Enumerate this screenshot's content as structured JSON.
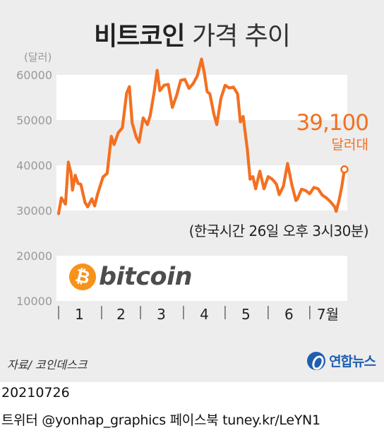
{
  "header": {
    "title_bold": "비트코인",
    "title_light": "가격 추이"
  },
  "annotation": {
    "latest_value": "39,100",
    "latest_unit": "달러대"
  },
  "time_note": "(한국시간 26일 오후 3시30분)",
  "logo": {
    "symbol": "₿",
    "word": "bitcoin",
    "icon": "bitcoin-logo-icon",
    "color": "#f7931a"
  },
  "footer": {
    "source": "자료/ 코인데스크",
    "agency": "연합뉴스",
    "date": "20210726",
    "credit": "트위터 @yonhap_graphics  페이스북 tuney.kr/LeYN1"
  },
  "colors": {
    "line": "#f37021",
    "band": "#ffffff",
    "background": "#ededed",
    "axis_text": "#999999"
  },
  "chart_data": {
    "type": "line",
    "title": "비트코인 가격 추이",
    "ylabel": "(달러)",
    "ylim": [
      10000,
      60000
    ],
    "ytick_values": [
      10000,
      20000,
      30000,
      40000,
      50000,
      60000
    ],
    "ytick_labels": [
      "10000",
      "20000",
      "30000",
      "40000",
      "50000",
      "60000"
    ],
    "month_labels": [
      "1",
      "2",
      "3",
      "4",
      "5",
      "6",
      "7월"
    ],
    "grid": "alternating white bands",
    "series": [
      {
        "x": [
          "2021-01-01",
          "2021-01-03",
          "2021-01-06",
          "2021-01-08",
          "2021-01-10",
          "2021-01-11",
          "2021-01-13",
          "2021-01-15",
          "2021-01-17",
          "2021-01-20",
          "2021-01-22",
          "2021-01-25",
          "2021-01-27",
          "2021-01-29",
          "2021-02-02",
          "2021-02-05",
          "2021-02-08",
          "2021-02-10",
          "2021-02-13",
          "2021-02-16",
          "2021-02-19",
          "2021-02-21",
          "2021-02-23",
          "2021-02-26",
          "2021-02-28",
          "2021-03-03",
          "2021-03-06",
          "2021-03-08",
          "2021-03-11",
          "2021-03-13",
          "2021-03-15",
          "2021-03-18",
          "2021-03-21",
          "2021-03-24",
          "2021-03-27",
          "2021-03-30",
          "2021-04-02",
          "2021-04-05",
          "2021-04-08",
          "2021-04-11",
          "2021-04-14",
          "2021-04-16",
          "2021-04-18",
          "2021-04-20",
          "2021-04-23",
          "2021-04-25",
          "2021-04-28",
          "2021-05-01",
          "2021-05-04",
          "2021-05-07",
          "2021-05-10",
          "2021-05-12",
          "2021-05-14",
          "2021-05-17",
          "2021-05-19",
          "2021-05-21",
          "2021-05-23",
          "2021-05-26",
          "2021-05-29",
          "2021-06-01",
          "2021-06-04",
          "2021-06-07",
          "2021-06-09",
          "2021-06-12",
          "2021-06-15",
          "2021-06-18",
          "2021-06-21",
          "2021-06-22",
          "2021-06-25",
          "2021-06-28",
          "2021-07-01",
          "2021-07-04",
          "2021-07-07",
          "2021-07-10",
          "2021-07-13",
          "2021-07-16",
          "2021-07-19",
          "2021-07-20",
          "2021-07-22",
          "2021-07-24",
          "2021-07-26"
        ],
        "y": [
          29300,
          32800,
          31400,
          40700,
          38200,
          34500,
          37800,
          36000,
          35800,
          31800,
          30800,
          32600,
          31000,
          33500,
          37400,
          38200,
          46400,
          44600,
          47200,
          48300,
          55900,
          57400,
          49400,
          46200,
          45100,
          50500,
          49000,
          51000,
          56500,
          61000,
          56500,
          57700,
          57900,
          52800,
          55400,
          58800,
          59000,
          57000,
          58100,
          59800,
          63500,
          60500,
          56300,
          55800,
          51200,
          49000,
          54800,
          57700,
          57100,
          57300,
          55800,
          49600,
          50800,
          43500,
          36900,
          37500,
          34800,
          38700,
          34800,
          37500,
          36900,
          35800,
          33500,
          35400,
          40400,
          35800,
          32200,
          32500,
          34700,
          34400,
          33700,
          35100,
          34800,
          33400,
          32800,
          31900,
          30800,
          29800,
          32100,
          35200,
          39100
        ]
      }
    ],
    "latest_label": "39,100",
    "latest_label_unit": "달러대",
    "note": "(한국시간 26일 오후 3시30분)"
  }
}
